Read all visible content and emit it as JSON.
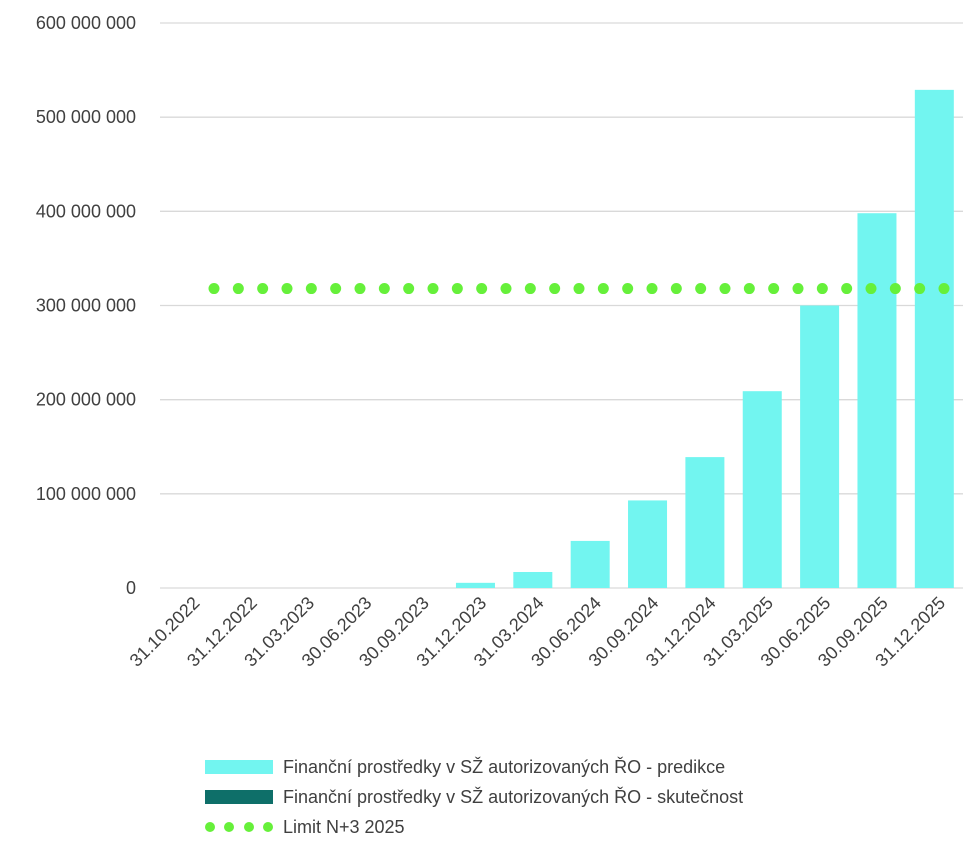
{
  "chart_data": {
    "type": "bar",
    "categories": [
      "31.10.2022",
      "31.12.2022",
      "31.03.2023",
      "30.06.2023",
      "30.09.2023",
      "31.12.2023",
      "31.03.2024",
      "30.06.2024",
      "30.09.2024",
      "31.12.2024",
      "31.03.2025",
      "30.06.2025",
      "30.09.2025",
      "31.12.2025"
    ],
    "series": [
      {
        "name": "Finanční prostředky v SŽ autorizovaných ŘO - predikce",
        "type": "bar",
        "color": "#72F5F0",
        "values": [
          0,
          0,
          0,
          0,
          0,
          5500000,
          17000000,
          50000000,
          93000000,
          139000000,
          209000000,
          300000000,
          398000000,
          529000000
        ]
      },
      {
        "name": "Finanční prostředky v SŽ autorizovaných ŘO - skutečnost",
        "type": "bar",
        "color": "#0E6F69",
        "values": [
          0,
          0,
          0,
          0,
          0,
          0,
          0,
          0,
          0,
          0,
          0,
          0,
          0,
          0
        ]
      },
      {
        "name": "Limit N+3 2025",
        "type": "line-dotted",
        "color": "#66F03A",
        "values": [
          318000000,
          318000000,
          318000000,
          318000000,
          318000000,
          318000000,
          318000000,
          318000000,
          318000000,
          318000000,
          318000000,
          318000000,
          318000000,
          318000000
        ]
      }
    ],
    "yticks": [
      0,
      100000000,
      200000000,
      300000000,
      400000000,
      500000000,
      600000000
    ],
    "ytick_labels": [
      "0",
      "100 000 000",
      "200 000 000",
      "300 000 000",
      "400 000 000",
      "500 000 000",
      "600 000 000"
    ],
    "ylim": [
      0,
      600000000
    ],
    "grid": true,
    "legend_position": "bottom"
  }
}
